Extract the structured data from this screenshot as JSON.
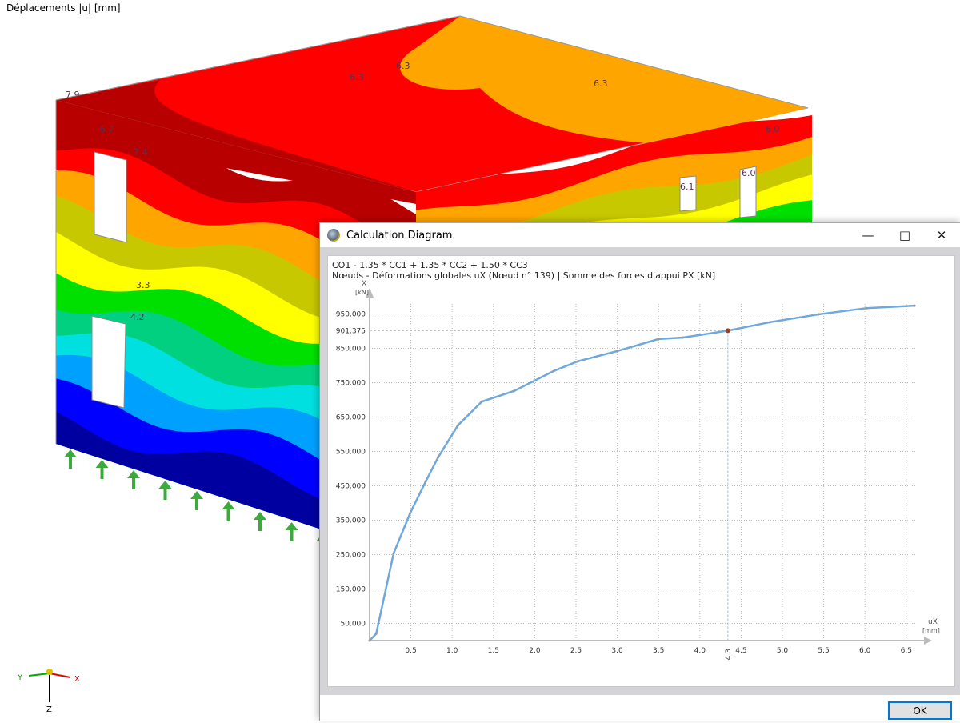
{
  "view": {
    "title": "Déplacements |u| [mm]",
    "labels": [
      "7.9",
      "6.7",
      "7.4",
      "6.3",
      "6.3",
      "6.3",
      "6.0",
      "6.0",
      "6.1",
      "3.3",
      "4.2"
    ],
    "axes": {
      "x": "X",
      "y": "Y",
      "z": "Z"
    },
    "band_colors": [
      "#b80000",
      "#ff0000",
      "#ffa500",
      "#c8c800",
      "#ffff00",
      "#00e000",
      "#00d080",
      "#00e0e0",
      "#00a0ff",
      "#0000ff",
      "#0000a0"
    ]
  },
  "dialog": {
    "title": "Calculation Diagram",
    "header_line1": "CO1 - 1.35 * CC1 + 1.35 * CC2 + 1.50 * CC3",
    "header_line2": "Nœuds - Déformations globales uX (Nœud n° 139) | Somme des forces d'appui PX [kN]",
    "ok_label": "OK",
    "minimize_icon": "minimize-icon",
    "maximize_icon": "maximize-icon",
    "close_icon": "close-icon"
  },
  "chart_data": {
    "type": "line",
    "ylabel": "X\n[kN]",
    "ylabel_name": "X",
    "ylabel_unit": "[kN]",
    "xlabel_name": "uX",
    "xlabel_unit": "[mm]",
    "xlim": [
      0,
      6.7
    ],
    "ylim": [
      0,
      1000
    ],
    "x_ticks": [
      "0.5",
      "1.0",
      "1.5",
      "2.0",
      "2.5",
      "3.0",
      "3.5",
      "4.0",
      "4.5",
      "5.0",
      "5.5",
      "6.0",
      "6.5"
    ],
    "y_ticks": [
      "50.000",
      "150.000",
      "250.000",
      "350.000",
      "450.000",
      "550.000",
      "650.000",
      "750.000",
      "850.000",
      "950.000"
    ],
    "grid": true,
    "color": "#6fa8dc",
    "x": [
      0,
      0.08,
      0.29,
      0.49,
      0.68,
      0.83,
      1.07,
      1.36,
      1.75,
      2.23,
      2.52,
      3.0,
      3.5,
      3.79,
      4.34,
      4.85,
      5.44,
      6.02,
      6.6
    ],
    "y": [
      0,
      20,
      253,
      370,
      463,
      533,
      626,
      695,
      726,
      784,
      812,
      842,
      877,
      881,
      901.375,
      926,
      949,
      967,
      974
    ],
    "marker": {
      "x": 4.34,
      "y": 901.375,
      "x_label": "4.3",
      "y_label": "901.375"
    }
  }
}
